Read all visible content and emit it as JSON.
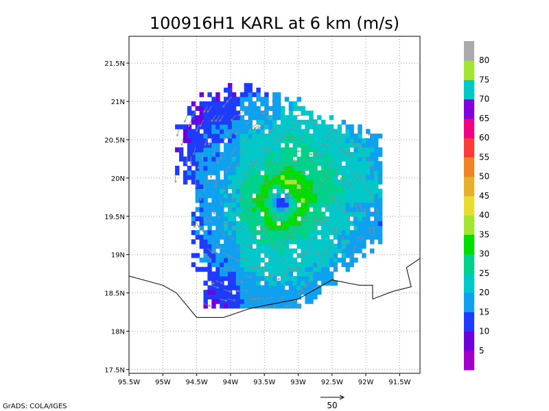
{
  "chart_data": {
    "type": "heatmap",
    "title": "100916H1 KARL at 6 km (m/s)",
    "xlim": [
      -95.5,
      -91.2
    ],
    "ylim": [
      17.45,
      21.85
    ],
    "x_ticks": [
      {
        "value": -95.5,
        "label": "95.5W"
      },
      {
        "value": -95.0,
        "label": "95W"
      },
      {
        "value": -94.5,
        "label": "94.5W"
      },
      {
        "value": -94.0,
        "label": "94W"
      },
      {
        "value": -93.5,
        "label": "93.5W"
      },
      {
        "value": -93.0,
        "label": "93W"
      },
      {
        "value": -92.5,
        "label": "92.5W"
      },
      {
        "value": -92.0,
        "label": "92W"
      },
      {
        "value": -91.5,
        "label": "91.5W"
      }
    ],
    "y_ticks": [
      {
        "value": 17.5,
        "label": "17.5N"
      },
      {
        "value": 18.0,
        "label": "18N"
      },
      {
        "value": 18.5,
        "label": "18.5N"
      },
      {
        "value": 19.0,
        "label": "19N"
      },
      {
        "value": 19.5,
        "label": "19.5N"
      },
      {
        "value": 20.0,
        "label": "20N"
      },
      {
        "value": 20.5,
        "label": "20.5N"
      },
      {
        "value": 21.0,
        "label": "21N"
      },
      {
        "value": 21.5,
        "label": "21.5N"
      }
    ],
    "grid": true,
    "colorbar": {
      "levels": [
        5,
        10,
        15,
        20,
        25,
        30,
        35,
        40,
        45,
        50,
        55,
        60,
        65,
        70,
        75,
        80
      ],
      "labels": [
        "5",
        "10",
        "15",
        "20",
        "25",
        "30",
        "35",
        "40",
        "45",
        "50",
        "55",
        "60",
        "65",
        "70",
        "75",
        "80"
      ],
      "colors": [
        "#a000c8",
        "#6e00dc",
        "#1e3cff",
        "#0fa0f0",
        "#00c8c8",
        "#00d28c",
        "#00dc00",
        "#a0e632",
        "#e6dc32",
        "#e6af2d",
        "#f08228",
        "#fa3c3c",
        "#f00082",
        "#8200dc",
        "#00c8c8",
        "#a0e632",
        "#aaaaaa"
      ]
    },
    "storm_center": {
      "lon": -93.27,
      "lat": 19.66
    },
    "coastline": [
      [
        -95.5,
        18.72
      ],
      [
        -95.0,
        18.6
      ],
      [
        -94.8,
        18.5
      ],
      [
        -94.5,
        18.18
      ],
      [
        -94.1,
        18.18
      ],
      [
        -93.7,
        18.3
      ],
      [
        -93.0,
        18.42
      ],
      [
        -92.5,
        18.67
      ],
      [
        -92.1,
        18.6
      ],
      [
        -91.9,
        18.6
      ],
      [
        -91.9,
        18.42
      ],
      [
        -91.6,
        18.52
      ],
      [
        -91.33,
        18.58
      ],
      [
        -91.4,
        18.83
      ],
      [
        -91.2,
        18.95
      ]
    ],
    "wind_rings": [
      {
        "r": 0.07,
        "value": 12
      },
      {
        "r": 0.15,
        "value": 25
      },
      {
        "r": 0.3,
        "value": 33
      },
      {
        "r": 0.42,
        "value": 28
      },
      {
        "r": 0.62,
        "value": 24
      },
      {
        "r": 0.85,
        "value": 22
      },
      {
        "r": 1.1,
        "value": 19
      },
      {
        "r": 1.35,
        "value": 17
      },
      {
        "r": 1.6,
        "value": 13
      }
    ],
    "reference_vector": {
      "label": "50",
      "value": 50
    }
  },
  "credit": "GrADS: COLA/IGES"
}
